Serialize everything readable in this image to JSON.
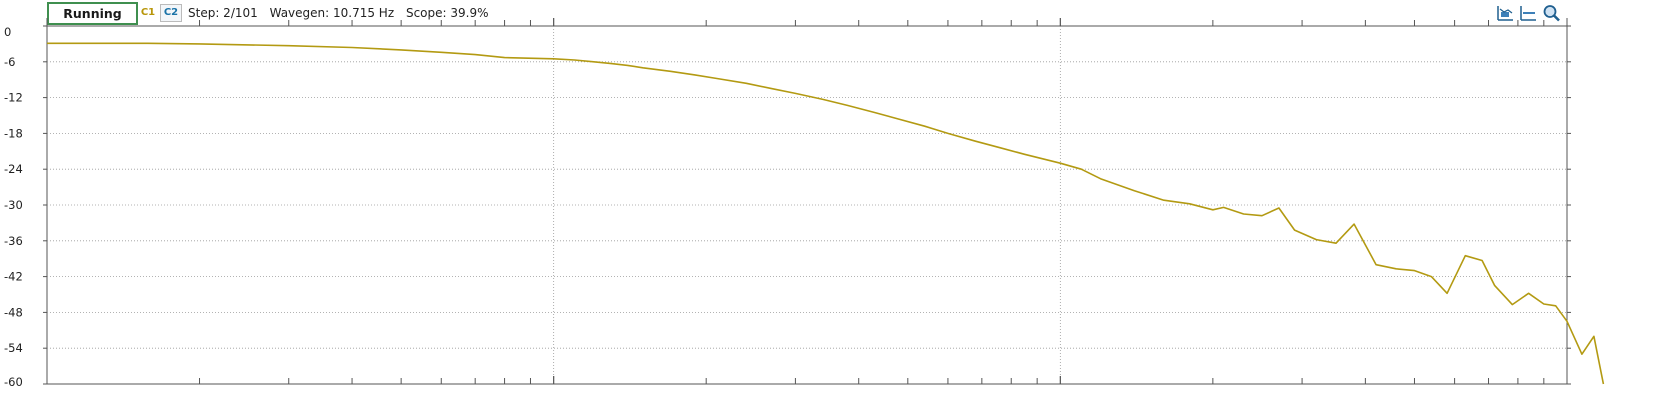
{
  "toolbar": {
    "status_label": "Running",
    "ch1_label": "C1",
    "ch2_label": "C2",
    "step_text": "Step: 2/101",
    "wavegen_text": "Wavegen: 10.715 Hz",
    "scope_text": "Scope: 39.9%",
    "icons": [
      "cursor-icon",
      "baseline-icon",
      "zoom-icon"
    ]
  },
  "colors": {
    "trace": "#b39a12",
    "axis": "#555555",
    "grid": "#9a9a9a"
  },
  "chart_data": {
    "type": "line",
    "title": "",
    "xlabel": "",
    "ylabel": "",
    "x_scale": "log",
    "xlim": [
      1,
      1000
    ],
    "ylim": [
      -60,
      0
    ],
    "y_ticks": [
      0,
      -6,
      -12,
      -18,
      -24,
      -30,
      -36,
      -42,
      -48,
      -54,
      -60
    ],
    "grid": true,
    "series": [
      {
        "values": [
          [
            1.0,
            -2.9
          ],
          [
            1.58,
            -2.9
          ],
          [
            2.0,
            -3.0
          ],
          [
            3.0,
            -3.3
          ],
          [
            4.0,
            -3.6
          ],
          [
            5.0,
            -4.0
          ],
          [
            6.0,
            -4.4
          ],
          [
            7.0,
            -4.8
          ],
          [
            8.0,
            -5.3
          ],
          [
            10.0,
            -5.5
          ],
          [
            11.0,
            -5.7
          ],
          [
            12.0,
            -6.0
          ],
          [
            13.0,
            -6.3
          ],
          [
            14.0,
            -6.6
          ],
          [
            15.0,
            -7.0
          ],
          [
            17.0,
            -7.6
          ],
          [
            19.0,
            -8.2
          ],
          [
            21.0,
            -8.8
          ],
          [
            24.0,
            -9.6
          ],
          [
            27.0,
            -10.5
          ],
          [
            30.0,
            -11.3
          ],
          [
            34.0,
            -12.3
          ],
          [
            38.0,
            -13.3
          ],
          [
            43.0,
            -14.5
          ],
          [
            48.0,
            -15.6
          ],
          [
            54.0,
            -16.8
          ],
          [
            60.0,
            -18.0
          ],
          [
            68.0,
            -19.3
          ],
          [
            76.0,
            -20.4
          ],
          [
            85.0,
            -21.5
          ],
          [
            100.0,
            -23.0
          ],
          [
            110.0,
            -24.0
          ],
          [
            120.0,
            -25.6
          ],
          [
            140.0,
            -27.6
          ],
          [
            160.0,
            -29.2
          ],
          [
            180.0,
            -29.8
          ],
          [
            200.0,
            -30.8
          ],
          [
            210.0,
            -30.4
          ],
          [
            230.0,
            -31.5
          ],
          [
            250.0,
            -31.8
          ],
          [
            270.0,
            -30.5
          ],
          [
            290.0,
            -34.2
          ],
          [
            320.0,
            -35.8
          ],
          [
            350.0,
            -36.4
          ],
          [
            380.0,
            -33.2
          ],
          [
            420.0,
            -40.0
          ],
          [
            460.0,
            -40.7
          ],
          [
            500.0,
            -41.0
          ],
          [
            540.0,
            -42.0
          ],
          [
            580.0,
            -44.8
          ],
          [
            630.0,
            -38.5
          ],
          [
            680.0,
            -39.3
          ],
          [
            720.0,
            -43.5
          ],
          [
            780.0,
            -46.7
          ],
          [
            840.0,
            -44.8
          ],
          [
            900.0,
            -46.6
          ],
          [
            950.0,
            -46.9
          ],
          [
            1000.0,
            -49.5
          ],
          [
            1070.0,
            -55.0
          ],
          [
            1130.0,
            -52.0
          ],
          [
            1180.0,
            -60.0
          ]
        ]
      }
    ]
  }
}
